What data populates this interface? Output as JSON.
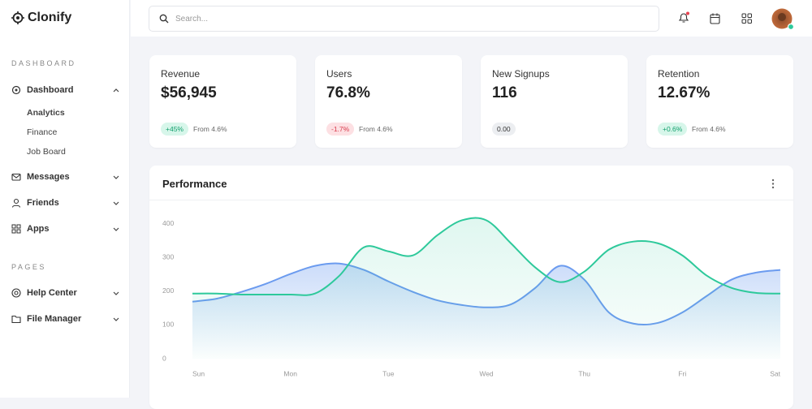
{
  "sidebar": {
    "brand": "Clonify",
    "sections": [
      {
        "title": "DASHBOARD",
        "items": [
          {
            "label": "Dashboard",
            "children": [
              "Analytics",
              "Finance",
              "Job Board"
            ]
          },
          {
            "label": "Messages"
          },
          {
            "label": "Friends"
          },
          {
            "label": "Apps"
          }
        ]
      },
      {
        "title": "PAGES",
        "items": [
          {
            "label": "Help Center"
          },
          {
            "label": "File Manager"
          }
        ]
      }
    ]
  },
  "header": {
    "search_placeholder": "Search..."
  },
  "cards": [
    {
      "label": "Revenue",
      "value": "$56,945",
      "badge": "+45%",
      "note": "From 4.6%"
    },
    {
      "label": "Users",
      "value": "76.8%",
      "badge": "-1.7%",
      "note": "From 4.6%"
    },
    {
      "label": "New Signups",
      "value": "116",
      "badge": "0.00"
    },
    {
      "label": "Retention",
      "value": "12.67%",
      "badge": "+0.6%",
      "note": "From 4.6%"
    }
  ],
  "chart_data": {
    "type": "area",
    "title": "Performance",
    "categories": [
      "Sun",
      null,
      null,
      null,
      "Mon",
      null,
      null,
      null,
      "Tue",
      null,
      null,
      null,
      "Wed",
      null,
      null,
      null,
      "Thu",
      null,
      null,
      null,
      "Fri",
      null,
      null,
      null,
      "Sat"
    ],
    "series": [
      {
        "color": "#6b9bef",
        "values": [
          169,
          178,
          198,
          222,
          251,
          275,
          282,
          263,
          229,
          198,
          173,
          159,
          152,
          161,
          210,
          275,
          234,
          137,
          104,
          106,
          137,
          186,
          234,
          255,
          263
        ]
      },
      {
        "color": "#2ec99b",
        "values": [
          193,
          193,
          190,
          190,
          190,
          193,
          246,
          330,
          318,
          306,
          366,
          410,
          410,
          342,
          270,
          227,
          258,
          323,
          347,
          342,
          306,
          246,
          210,
          195,
          193
        ]
      }
    ],
    "ylim": [
      0,
      440
    ],
    "yticks": [
      0,
      100,
      200,
      300,
      400
    ],
    "grid": false
  }
}
